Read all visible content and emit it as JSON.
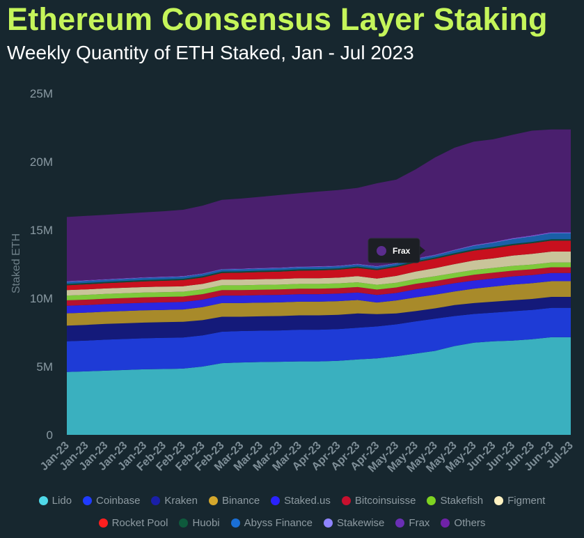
{
  "header": {
    "title": "Ethereum Consensus Layer Staking",
    "subtitle": "Weekly Quantity of ETH Staked, Jan - Jul 2023"
  },
  "tooltip": {
    "label": "Frax",
    "color": "#5b2d8e"
  },
  "chart_data": {
    "type": "area",
    "stacked": true,
    "ylabel": "Staked ETH",
    "ylim": [
      0,
      25000000
    ],
    "yticks": [
      0,
      5000000,
      10000000,
      15000000,
      20000000,
      25000000
    ],
    "ytick_labels": [
      "0",
      "5M",
      "10M",
      "15M",
      "20M",
      "25M"
    ],
    "categories": [
      "Jan-23",
      "Jan-23",
      "Jan-23",
      "Jan-23",
      "Jan-23",
      "Feb-23",
      "Feb-23",
      "Feb-23",
      "Feb-23",
      "Mar-23",
      "Mar-23",
      "Mar-23",
      "Mar-23",
      "Apr-23",
      "Apr-23",
      "Apr-23",
      "Apr-23",
      "May-23",
      "May-23",
      "May-23",
      "May-23",
      "May-23",
      "Jun-23",
      "Jun-23",
      "Jun-23",
      "Jun-23",
      "Jul-23"
    ],
    "series": [
      {
        "name": "Lido",
        "color": "#3ab0bf",
        "values": [
          4.6,
          4.65,
          4.7,
          4.75,
          4.8,
          4.82,
          4.85,
          5.0,
          5.25,
          5.3,
          5.33,
          5.35,
          5.38,
          5.38,
          5.42,
          5.52,
          5.6,
          5.75,
          5.95,
          6.15,
          6.5,
          6.75,
          6.85,
          6.9,
          7.0,
          7.15,
          7.15
        ]
      },
      {
        "name": "Coinbase",
        "color": "#1e3bd6",
        "values": [
          2.25,
          2.25,
          2.27,
          2.27,
          2.27,
          2.28,
          2.28,
          2.28,
          2.3,
          2.3,
          2.3,
          2.3,
          2.32,
          2.32,
          2.32,
          2.32,
          2.34,
          2.34,
          2.36,
          2.36,
          2.2,
          2.1,
          2.1,
          2.15,
          2.15,
          2.15,
          2.15
        ]
      },
      {
        "name": "Kraken",
        "color": "#141a7a",
        "values": [
          1.15,
          1.15,
          1.15,
          1.15,
          1.15,
          1.15,
          1.15,
          1.12,
          1.1,
          1.05,
          1.05,
          1.05,
          1.05,
          1.05,
          1.05,
          1.05,
          0.9,
          0.8,
          0.75,
          0.75,
          0.8,
          0.8,
          0.8,
          0.8,
          0.8,
          0.8,
          0.8
        ]
      },
      {
        "name": "Binance",
        "color": "#a88a2a",
        "values": [
          0.9,
          0.9,
          0.9,
          0.9,
          0.9,
          0.9,
          0.9,
          0.95,
          1.0,
          1.0,
          1.0,
          1.0,
          1.0,
          1.0,
          1.0,
          0.98,
          0.85,
          0.95,
          1.0,
          1.0,
          1.0,
          1.05,
          1.1,
          1.15,
          1.15,
          1.15,
          1.15
        ]
      },
      {
        "name": "Staked.us",
        "color": "#2b26e0",
        "values": [
          0.55,
          0.55,
          0.55,
          0.55,
          0.55,
          0.55,
          0.55,
          0.55,
          0.55,
          0.55,
          0.55,
          0.55,
          0.55,
          0.55,
          0.55,
          0.55,
          0.55,
          0.55,
          0.6,
          0.6,
          0.6,
          0.6,
          0.6,
          0.6,
          0.6,
          0.6,
          0.6
        ]
      },
      {
        "name": "Bitcoinsuisse",
        "color": "#b5122e",
        "values": [
          0.4,
          0.4,
          0.4,
          0.4,
          0.4,
          0.4,
          0.4,
          0.4,
          0.4,
          0.4,
          0.4,
          0.4,
          0.4,
          0.4,
          0.4,
          0.4,
          0.4,
          0.4,
          0.4,
          0.4,
          0.4,
          0.42,
          0.42,
          0.42,
          0.42,
          0.42,
          0.42
        ]
      },
      {
        "name": "Stakefish",
        "color": "#7ec93a",
        "values": [
          0.35,
          0.35,
          0.35,
          0.35,
          0.35,
          0.35,
          0.35,
          0.35,
          0.35,
          0.35,
          0.35,
          0.35,
          0.35,
          0.35,
          0.35,
          0.35,
          0.35,
          0.35,
          0.35,
          0.35,
          0.35,
          0.35,
          0.35,
          0.35,
          0.35,
          0.35,
          0.35
        ]
      },
      {
        "name": "Figment",
        "color": "#c9c49a",
        "values": [
          0.4,
          0.4,
          0.4,
          0.4,
          0.4,
          0.4,
          0.4,
          0.4,
          0.42,
          0.42,
          0.42,
          0.42,
          0.42,
          0.42,
          0.42,
          0.45,
          0.45,
          0.5,
          0.55,
          0.6,
          0.65,
          0.7,
          0.7,
          0.75,
          0.78,
          0.8,
          0.8
        ]
      },
      {
        "name": "Rocket Pool",
        "color": "#c8101e",
        "values": [
          0.35,
          0.37,
          0.38,
          0.4,
          0.42,
          0.43,
          0.45,
          0.47,
          0.48,
          0.5,
          0.52,
          0.53,
          0.55,
          0.57,
          0.58,
          0.6,
          0.62,
          0.64,
          0.66,
          0.68,
          0.7,
          0.72,
          0.74,
          0.76,
          0.78,
          0.8,
          0.8
        ]
      },
      {
        "name": "Huobi",
        "color": "#0f4a3a",
        "values": [
          0.1,
          0.1,
          0.1,
          0.1,
          0.1,
          0.1,
          0.1,
          0.1,
          0.1,
          0.1,
          0.1,
          0.1,
          0.1,
          0.1,
          0.1,
          0.1,
          0.1,
          0.1,
          0.1,
          0.1,
          0.1,
          0.1,
          0.1,
          0.1,
          0.1,
          0.1,
          0.1
        ]
      },
      {
        "name": "Abyss Finance",
        "color": "#1a5fa8",
        "values": [
          0.15,
          0.15,
          0.15,
          0.15,
          0.15,
          0.15,
          0.15,
          0.15,
          0.15,
          0.15,
          0.15,
          0.15,
          0.15,
          0.15,
          0.15,
          0.15,
          0.15,
          0.15,
          0.15,
          0.15,
          0.2,
          0.25,
          0.3,
          0.35,
          0.4,
          0.45,
          0.45
        ]
      },
      {
        "name": "Stakewise",
        "color": "#8a7be8",
        "values": [
          0.03,
          0.03,
          0.03,
          0.03,
          0.03,
          0.03,
          0.03,
          0.03,
          0.03,
          0.03,
          0.03,
          0.03,
          0.03,
          0.03,
          0.03,
          0.03,
          0.03,
          0.03,
          0.03,
          0.03,
          0.03,
          0.04,
          0.04,
          0.04,
          0.04,
          0.04,
          0.04
        ]
      },
      {
        "name": "Frax",
        "color": "#6b2fb0",
        "values": [
          0.03,
          0.03,
          0.03,
          0.03,
          0.03,
          0.03,
          0.03,
          0.03,
          0.03,
          0.03,
          0.03,
          0.03,
          0.03,
          0.03,
          0.03,
          0.03,
          0.03,
          0.03,
          0.04,
          0.04,
          0.04,
          0.04,
          0.04,
          0.05,
          0.05,
          0.05,
          0.05
        ]
      },
      {
        "name": "Others",
        "color": "#4a1f6e",
        "values": [
          4.69,
          4.7,
          4.7,
          4.72,
          4.74,
          4.78,
          4.84,
          4.95,
          5.05,
          5.12,
          5.2,
          5.3,
          5.36,
          5.46,
          5.52,
          5.55,
          6.05,
          6.1,
          6.5,
          7.1,
          7.45,
          7.55,
          7.5,
          7.55,
          7.65,
          7.5,
          7.5
        ]
      }
    ]
  },
  "legend": {
    "row1": [
      {
        "label": "Lido",
        "color": "#4fd8e8"
      },
      {
        "label": "Coinbase",
        "color": "#1f3bff"
      },
      {
        "label": "Kraken",
        "color": "#1a1fa8"
      },
      {
        "label": "Binance",
        "color": "#d4a72c"
      },
      {
        "label": "Staked.us",
        "color": "#2a22ff"
      },
      {
        "label": "Bitcoinsuisse",
        "color": "#c8102e"
      },
      {
        "label": "Stakefish",
        "color": "#7ed321"
      },
      {
        "label": "Figment",
        "color": "#fff2c2"
      }
    ],
    "row2": [
      {
        "label": "Rocket Pool",
        "color": "#ff1f1f"
      },
      {
        "label": "Huobi",
        "color": "#0e5a3c"
      },
      {
        "label": "Abyss Finance",
        "color": "#1a6fd6"
      },
      {
        "label": "Stakewise",
        "color": "#8f84ff"
      },
      {
        "label": "Frax",
        "color": "#6a2fb5"
      },
      {
        "label": "Others",
        "color": "#6f22a8"
      }
    ]
  }
}
